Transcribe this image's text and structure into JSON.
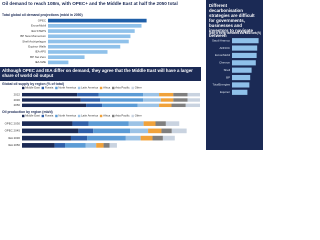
{
  "headline": "Oil demand to reach 108m, with OPEC+ and the Middle East at half the 2050 total",
  "section_note": "Although OPEC and IEA differ on demand, they agree that the Middle East will have a larger share of world oil output",
  "side_note": "Different decarbonisation strategies are difficult for governments, businesses and investors to navigate between",
  "chart_data": [
    {
      "type": "hbar",
      "title": "Total global oil demand projections (mb/d in 2050)",
      "categories": [
        "OPEC",
        "ExxonMobil",
        "IEA STEPS",
        "BP New Momentum",
        "Shell Archipelagos",
        "Equinor Walls",
        "IEA APS",
        "BP Net Zero",
        "IEA NZE"
      ],
      "values": [
        116,
        110,
        102,
        97,
        95,
        85,
        70,
        43,
        24
      ],
      "colors": [
        "#1f5fa8",
        "#8fc1ea",
        "#8fc1ea",
        "#8fc1ea",
        "#8fc1ea",
        "#8fc1ea",
        "#8fc1ea",
        "#8fc1ea",
        "#8fc1ea"
      ],
      "xlim": [
        0,
        120
      ]
    },
    {
      "type": "stacked-hbar",
      "title": "Global oil supply by region (% of total)",
      "categories": [
        "2022",
        "2030",
        "2050"
      ],
      "series": [
        {
          "name": "Middle East",
          "color": "#1b2a55",
          "values": [
            31,
            33,
            36
          ]
        },
        {
          "name": "Russia",
          "color": "#2f5fa8",
          "values": [
            12,
            11,
            9
          ]
        },
        {
          "name": "North America",
          "color": "#5b9bd5",
          "values": [
            25,
            24,
            20
          ]
        },
        {
          "name": "Latin America",
          "color": "#9cc3e6",
          "values": [
            9,
            10,
            12
          ]
        },
        {
          "name": "Africa",
          "color": "#f0a23b",
          "values": [
            8,
            7,
            7
          ]
        },
        {
          "name": "Asia Pacific",
          "color": "#7f7f7f",
          "values": [
            8,
            8,
            8
          ]
        },
        {
          "name": "Other",
          "color": "#c9d3e0",
          "values": [
            7,
            7,
            8
          ]
        }
      ],
      "xlim": [
        0,
        100
      ]
    },
    {
      "type": "stacked-hbar",
      "title": "Oil production by region (mb/d)",
      "categories": [
        "OPEC 2030",
        "OPEC 2045",
        "IEA 2030",
        "IEA 2050"
      ],
      "series": [
        {
          "name": "Middle East",
          "color": "#1b2a55",
          "values": [
            34,
            38,
            33,
            22
          ]
        },
        {
          "name": "Russia",
          "color": "#2f5fa8",
          "values": [
            11,
            10,
            11,
            7
          ]
        },
        {
          "name": "North America",
          "color": "#5b9bd5",
          "values": [
            27,
            25,
            26,
            14
          ]
        },
        {
          "name": "Latin America",
          "color": "#9cc3e6",
          "values": [
            10,
            12,
            10,
            7
          ]
        },
        {
          "name": "Africa",
          "color": "#f0a23b",
          "values": [
            8,
            9,
            8,
            5
          ]
        },
        {
          "name": "Asia Pacific",
          "color": "#7f7f7f",
          "values": [
            7,
            7,
            7,
            4
          ]
        },
        {
          "name": "Other",
          "color": "#c9d3e0",
          "values": [
            9,
            10,
            8,
            5
          ]
        }
      ],
      "xlim": [
        0,
        120
      ]
    },
    {
      "type": "hbar",
      "title": "Share of energy investment into fossil fuels (%)",
      "categories": [
        "Saudi Aramco",
        "ADNOC",
        "ExxonMobil",
        "Chevron",
        "Shell",
        "BP",
        "TotalEnergies",
        "Equinor"
      ],
      "values": [
        95,
        90,
        88,
        85,
        70,
        65,
        62,
        55
      ],
      "color": "#8fc1ea",
      "xlim": [
        0,
        100
      ]
    }
  ]
}
